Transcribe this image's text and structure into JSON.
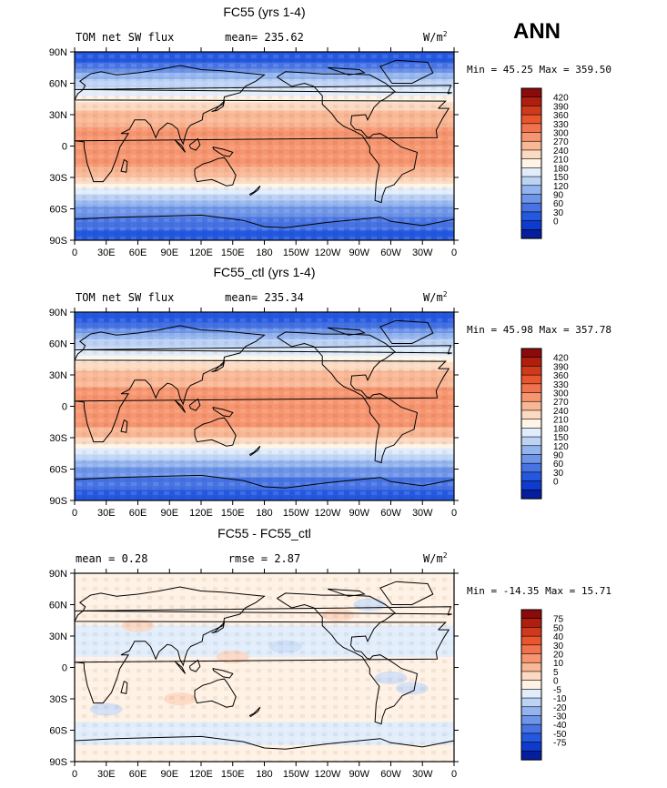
{
  "season_label": "ANN",
  "units": "W/m",
  "units_exp": "2",
  "lat_ticks": [
    "90N",
    "60N",
    "30N",
    "0",
    "30S",
    "60S",
    "90S"
  ],
  "lon_ticks": [
    "0",
    "30E",
    "60E",
    "90E",
    "120E",
    "150E",
    "180",
    "150W",
    "120W",
    "90W",
    "60W",
    "30W",
    "0"
  ],
  "panels": [
    {
      "title": "FC55 (yrs 1-4)",
      "left_label": "TOM net SW flux",
      "center_label": "mean= 235.62",
      "min_label": "Min =",
      "min_value": "45.25",
      "max_label": "Max =",
      "max_value": "359.50",
      "colorbar_labels": [
        "420",
        "390",
        "360",
        "330",
        "300",
        "270",
        "240",
        "210",
        "180",
        "150",
        "120",
        "90",
        "60",
        "30",
        "0"
      ],
      "colors": [
        "#8b0a0a",
        "#b01e0e",
        "#d03a1c",
        "#e9562d",
        "#f27250",
        "#f6956f",
        "#f9b795",
        "#fcdac2",
        "#fff4e6",
        "#e2edfb",
        "#bdd3f6",
        "#93b4ee",
        "#6e95e8",
        "#4773e3",
        "#2458e0",
        "#0d3bd0",
        "#041e9e"
      ],
      "chart_data": {
        "type": "heatmap",
        "title": "FC55 (yrs 1-4)",
        "variable": "TOM net SW flux",
        "units": "W/m2",
        "mean": 235.62,
        "min": 45.25,
        "max": 359.5,
        "x_range": [
          0,
          360
        ],
        "y_range": [
          -90,
          90
        ],
        "levels": [
          0,
          30,
          60,
          90,
          120,
          150,
          180,
          210,
          240,
          270,
          300,
          330,
          360,
          390,
          420
        ],
        "zonal_profile": [
          [
            90,
            40
          ],
          [
            80,
            60
          ],
          [
            70,
            115
          ],
          [
            60,
            165
          ],
          [
            50,
            205
          ],
          [
            40,
            252
          ],
          [
            30,
            282
          ],
          [
            20,
            298
          ],
          [
            10,
            305
          ],
          [
            0,
            322
          ],
          [
            -10,
            308
          ],
          [
            -20,
            300
          ],
          [
            -30,
            275
          ],
          [
            -40,
            212
          ],
          [
            -50,
            155
          ],
          [
            -60,
            115
          ],
          [
            -70,
            80
          ],
          [
            -80,
            58
          ],
          [
            -90,
            45
          ]
        ]
      }
    },
    {
      "title": "FC55_ctl (yrs 1-4)",
      "left_label": "TOM net SW flux",
      "center_label": "mean= 235.34",
      "min_label": "Min =",
      "min_value": "45.98",
      "max_label": "Max =",
      "max_value": "357.78",
      "colorbar_labels": [
        "420",
        "390",
        "360",
        "330",
        "300",
        "270",
        "240",
        "210",
        "180",
        "150",
        "120",
        "90",
        "60",
        "30",
        "0"
      ],
      "colors": [
        "#8b0a0a",
        "#b01e0e",
        "#d03a1c",
        "#e9562d",
        "#f27250",
        "#f6956f",
        "#f9b795",
        "#fcdac2",
        "#fff4e6",
        "#e2edfb",
        "#bdd3f6",
        "#93b4ee",
        "#6e95e8",
        "#4773e3",
        "#2458e0",
        "#0d3bd0",
        "#041e9e"
      ],
      "chart_data": {
        "type": "heatmap",
        "title": "FC55_ctl (yrs 1-4)",
        "variable": "TOM net SW flux",
        "units": "W/m2",
        "mean": 235.34,
        "min": 45.98,
        "max": 357.78,
        "x_range": [
          0,
          360
        ],
        "y_range": [
          -90,
          90
        ],
        "levels": [
          0,
          30,
          60,
          90,
          120,
          150,
          180,
          210,
          240,
          270,
          300,
          330,
          360,
          390,
          420
        ],
        "zonal_profile": [
          [
            90,
            40
          ],
          [
            80,
            60
          ],
          [
            70,
            115
          ],
          [
            60,
            165
          ],
          [
            50,
            205
          ],
          [
            40,
            252
          ],
          [
            30,
            282
          ],
          [
            20,
            298
          ],
          [
            10,
            305
          ],
          [
            0,
            322
          ],
          [
            -10,
            308
          ],
          [
            -20,
            300
          ],
          [
            -30,
            275
          ],
          [
            -40,
            212
          ],
          [
            -50,
            155
          ],
          [
            -60,
            115
          ],
          [
            -70,
            80
          ],
          [
            -80,
            58
          ],
          [
            -90,
            45
          ]
        ]
      }
    },
    {
      "title": "FC55 - FC55_ctl",
      "left_label": "mean =    0.28",
      "center_label": "rmse =    2.87",
      "min_label": "Min =",
      "min_value": "-14.35",
      "max_label": "Max =",
      "max_value": "15.71",
      "colorbar_labels": [
        "75",
        "50",
        "40",
        "30",
        "20",
        "10",
        "5",
        "0",
        "-5",
        "-10",
        "-20",
        "-30",
        "-40",
        "-50",
        "-75"
      ],
      "colors": [
        "#8b0a0a",
        "#b01e0e",
        "#d03a1c",
        "#e9562d",
        "#f27250",
        "#f6956f",
        "#f9b795",
        "#fcdac2",
        "#fff1e4",
        "#e2edfb",
        "#bdd3f6",
        "#93b4ee",
        "#6e95e8",
        "#4773e3",
        "#2458e0",
        "#0d3bd0",
        "#041e9e"
      ],
      "chart_data": {
        "type": "heatmap",
        "title": "FC55 - FC55_ctl",
        "units": "W/m2",
        "mean": 0.28,
        "rmse": 2.87,
        "min": -14.35,
        "max": 15.71,
        "x_range": [
          0,
          360
        ],
        "y_range": [
          -90,
          90
        ],
        "levels": [
          -75,
          -50,
          -40,
          -30,
          -20,
          -10,
          -5,
          0,
          5,
          10,
          20,
          30,
          40,
          50,
          75
        ],
        "zonal_profile": [
          [
            90,
            0.5
          ],
          [
            60,
            2
          ],
          [
            30,
            -1
          ],
          [
            0,
            0.5
          ],
          [
            -30,
            1.5
          ],
          [
            -60,
            -0.5
          ],
          [
            -90,
            0.5
          ]
        ]
      }
    }
  ]
}
